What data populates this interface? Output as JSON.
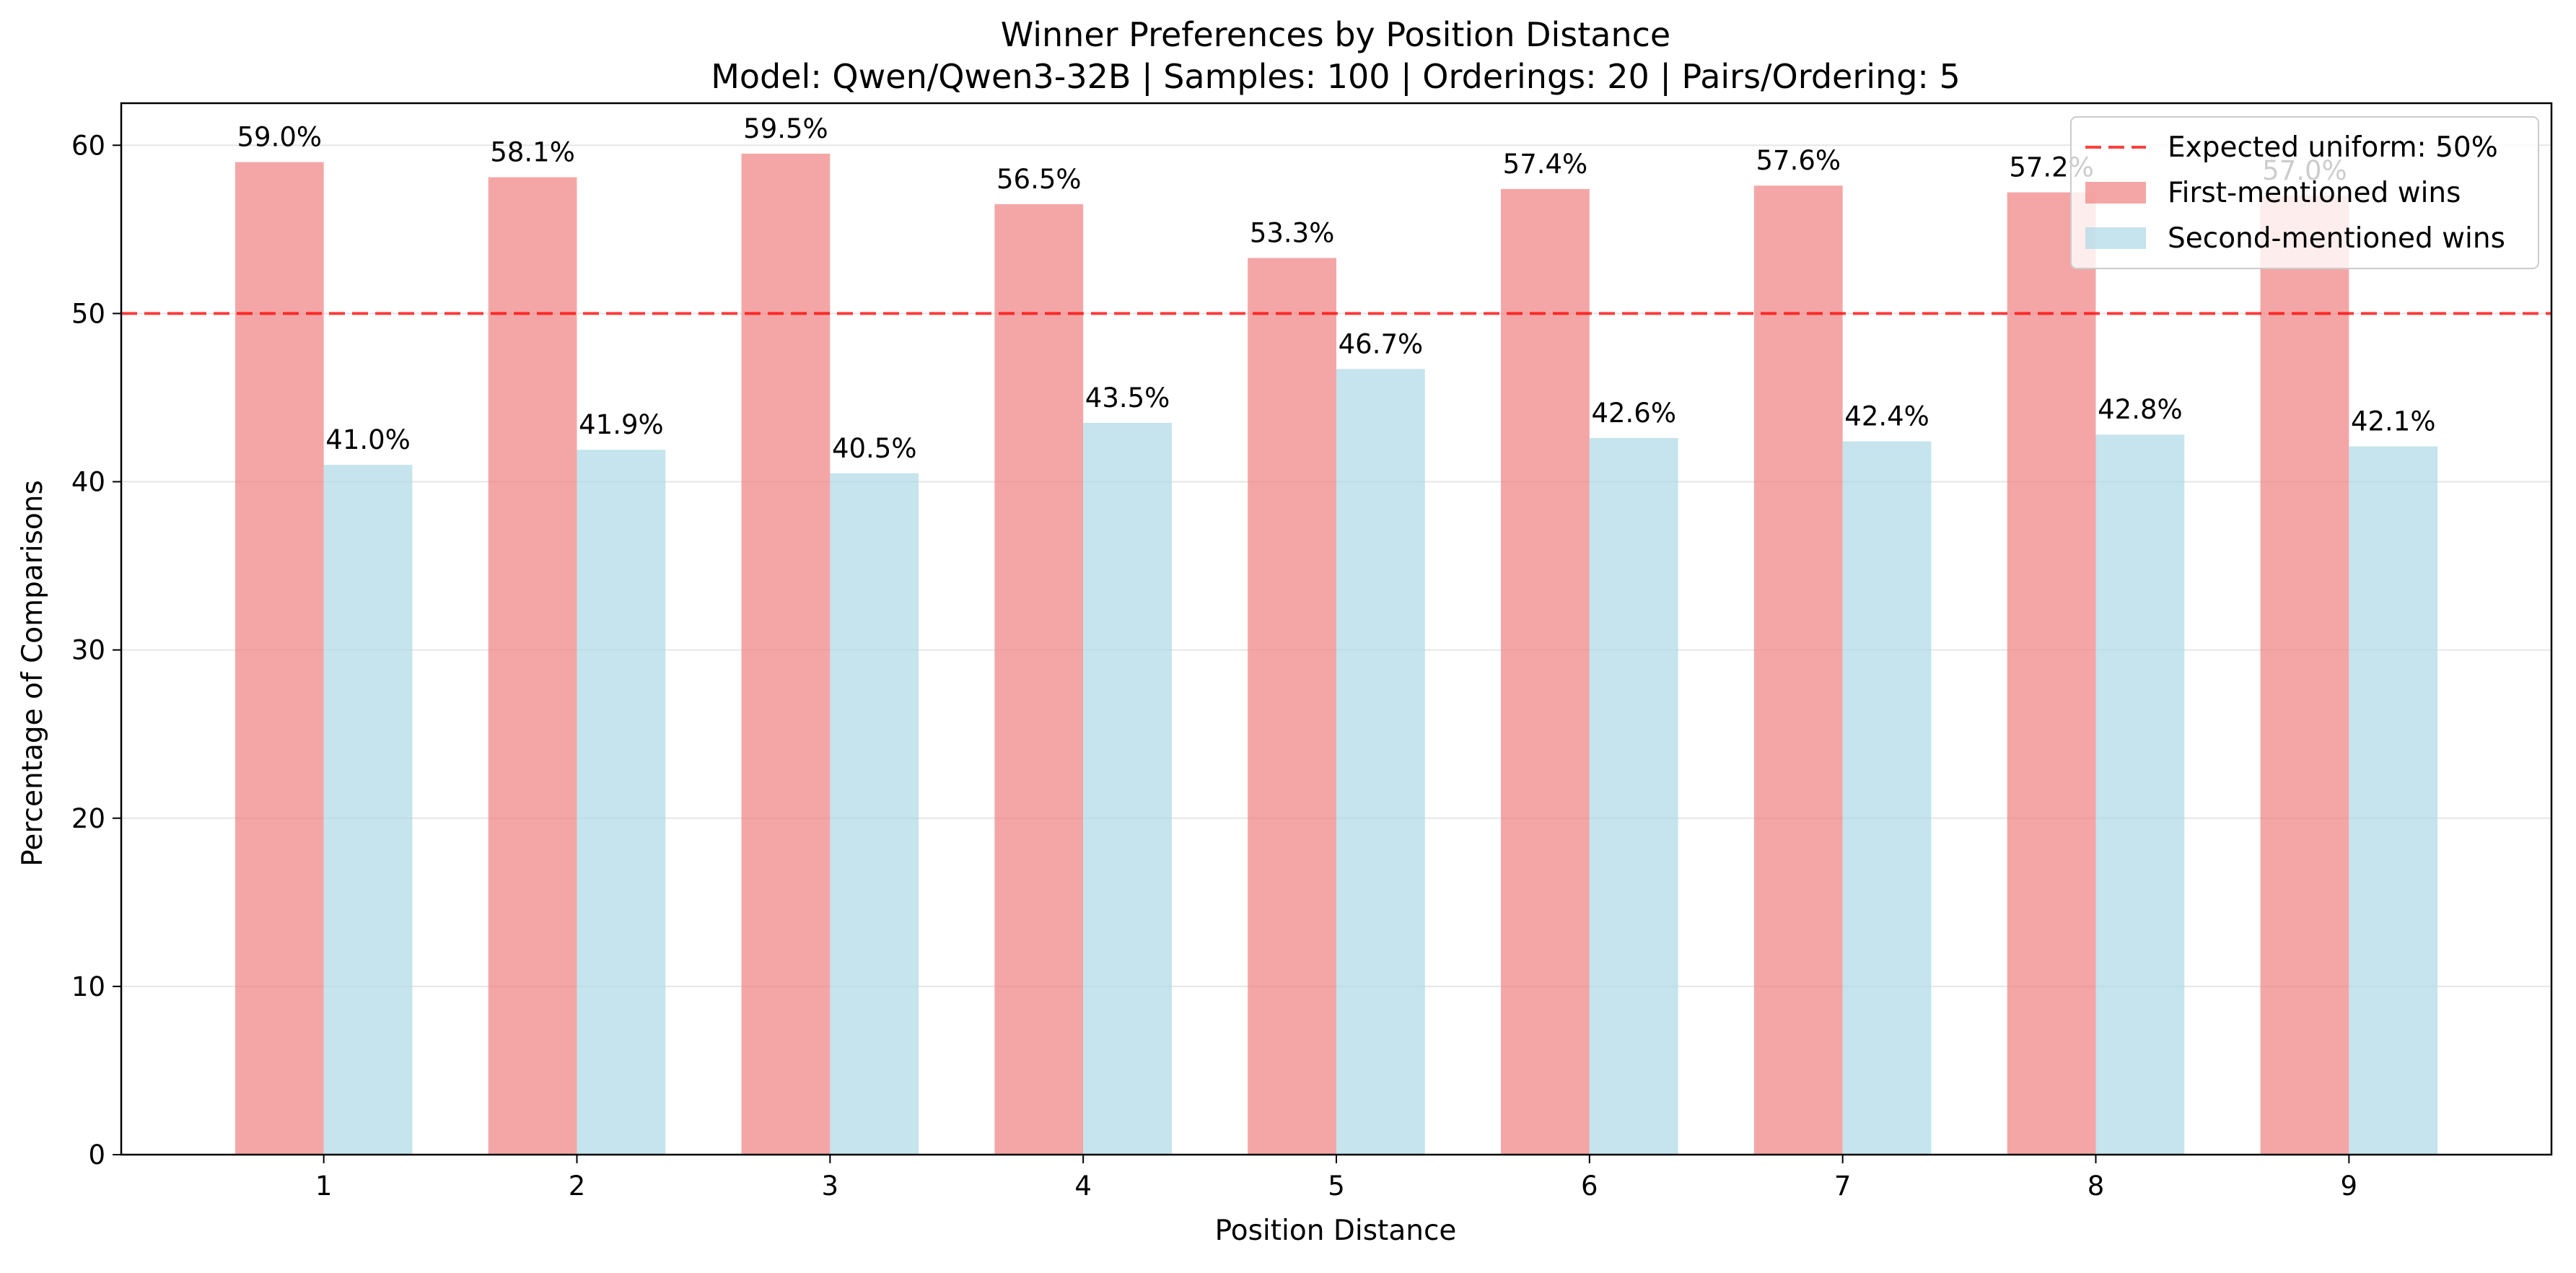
{
  "chart_data": {
    "type": "bar",
    "title": "Winner Preferences by Position Distance",
    "subtitle": "Model: Qwen/Qwen3-32B | Samples: 100 | Orderings: 20 | Pairs/Ordering: 5",
    "xlabel": "Position Distance",
    "ylabel": "Percentage of Comparisons",
    "categories": [
      "1",
      "2",
      "3",
      "4",
      "5",
      "6",
      "7",
      "8",
      "9"
    ],
    "series": [
      {
        "name": "First-mentioned wins",
        "color": "#f08080",
        "values": [
          59.0,
          58.1,
          59.5,
          56.5,
          53.3,
          57.4,
          57.6,
          57.2,
          57.0
        ],
        "labels": [
          "59.0%",
          "58.1%",
          "59.5%",
          "56.5%",
          "53.3%",
          "57.4%",
          "57.6%",
          "57.2%",
          "57.0%"
        ]
      },
      {
        "name": "Second-mentioned wins",
        "color": "#add8e6",
        "values": [
          41.0,
          41.9,
          40.5,
          43.5,
          46.7,
          42.6,
          42.4,
          42.8,
          42.1
        ],
        "labels": [
          "41.0%",
          "41.9%",
          "40.5%",
          "43.5%",
          "46.7%",
          "42.6%",
          "42.4%",
          "42.8%",
          "42.1%"
        ]
      }
    ],
    "reference_line": {
      "label": "Expected uniform: 50%",
      "value": 50,
      "color": "#ff0000",
      "style": "dashed"
    },
    "ylim": [
      0,
      62.5
    ],
    "yticks": [
      "0",
      "10",
      "20",
      "30",
      "40",
      "50",
      "60"
    ],
    "grid": "horizontal",
    "legend_position": "top-right"
  }
}
